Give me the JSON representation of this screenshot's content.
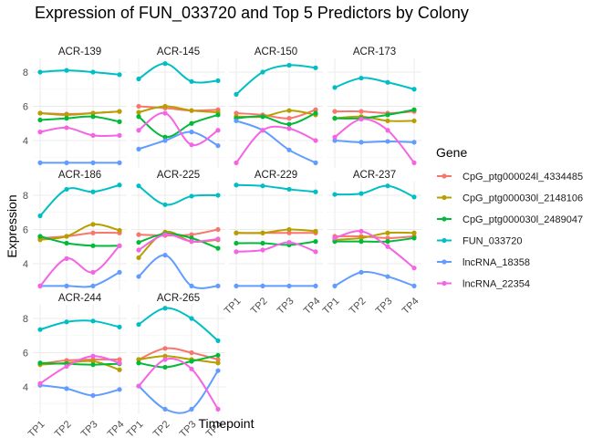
{
  "chart_data": {
    "type": "line",
    "title": "Expression of FUN_033720 and Top 5 Predictors by Colony",
    "xlabel": "Timepoint",
    "ylabel": "Expression",
    "x": [
      "TP1",
      "TP2",
      "TP3",
      "TP4"
    ],
    "yticks": [
      4,
      6,
      8
    ],
    "ylim": [
      2.4,
      8.8
    ],
    "grid": true,
    "facet_layout": "4 columns",
    "legend": {
      "title": "Gene",
      "position": "right",
      "entries": [
        "CpG_ptg000024l_4334485",
        "CpG_ptg000030l_2148106",
        "CpG_ptg000030l_2489047",
        "FUN_033720",
        "lncRNA_18358",
        "lncRNA_22354"
      ]
    },
    "colors": {
      "CpG_ptg000024l_4334485": "#F8766D",
      "CpG_ptg000030l_2148106": "#B79F00",
      "CpG_ptg000030l_2489047": "#00BA38",
      "FUN_033720": "#00BFC4",
      "lncRNA_18358": "#619CFF",
      "lncRNA_22354": "#F564E3"
    },
    "panels": [
      {
        "colony": "ACR-139",
        "series": [
          {
            "name": "CpG_ptg000024l_4334485",
            "values": [
              5.6,
              5.55,
              5.6,
              5.7
            ]
          },
          {
            "name": "CpG_ptg000030l_2148106",
            "values": [
              5.6,
              5.5,
              5.6,
              5.7
            ]
          },
          {
            "name": "CpG_ptg000030l_2489047",
            "values": [
              5.2,
              5.3,
              5.4,
              5.1
            ]
          },
          {
            "name": "FUN_033720",
            "values": [
              8.0,
              8.1,
              8.0,
              7.85
            ]
          },
          {
            "name": "lncRNA_18358",
            "values": [
              2.7,
              2.7,
              2.7,
              2.7
            ]
          },
          {
            "name": "lncRNA_22354",
            "values": [
              4.5,
              4.75,
              4.3,
              4.3
            ]
          }
        ]
      },
      {
        "colony": "ACR-145",
        "series": [
          {
            "name": "CpG_ptg000024l_4334485",
            "values": [
              6.0,
              5.9,
              5.75,
              5.8
            ]
          },
          {
            "name": "CpG_ptg000030l_2148106",
            "values": [
              5.65,
              6.0,
              5.75,
              5.65
            ]
          },
          {
            "name": "CpG_ptg000030l_2489047",
            "values": [
              5.4,
              4.2,
              5.0,
              5.5
            ]
          },
          {
            "name": "FUN_033720",
            "values": [
              7.6,
              8.5,
              7.45,
              7.5
            ]
          },
          {
            "name": "lncRNA_18358",
            "values": [
              3.5,
              4.0,
              4.5,
              3.7
            ]
          },
          {
            "name": "lncRNA_22354",
            "values": [
              4.6,
              5.6,
              3.75,
              4.6
            ]
          }
        ]
      },
      {
        "colony": "ACR-150",
        "series": [
          {
            "name": "CpG_ptg000024l_4334485",
            "values": [
              5.6,
              5.5,
              5.3,
              5.8
            ]
          },
          {
            "name": "CpG_ptg000030l_2148106",
            "values": [
              5.4,
              5.4,
              5.75,
              5.5
            ]
          },
          {
            "name": "CpG_ptg000030l_2489047",
            "values": [
              5.3,
              5.4,
              4.95,
              5.6
            ]
          },
          {
            "name": "FUN_033720",
            "values": [
              6.7,
              8.0,
              8.4,
              8.25
            ]
          },
          {
            "name": "lncRNA_18358",
            "values": [
              5.15,
              4.6,
              3.45,
              2.7
            ]
          },
          {
            "name": "lncRNA_22354",
            "values": [
              2.7,
              4.6,
              4.7,
              4.0
            ]
          }
        ]
      },
      {
        "colony": "ACR-173",
        "series": [
          {
            "name": "CpG_ptg000024l_4334485",
            "values": [
              5.7,
              5.7,
              5.6,
              5.7
            ]
          },
          {
            "name": "CpG_ptg000030l_2148106",
            "values": [
              5.3,
              5.4,
              5.15,
              5.15
            ]
          },
          {
            "name": "CpG_ptg000030l_2489047",
            "values": [
              5.3,
              5.3,
              5.5,
              5.8
            ]
          },
          {
            "name": "FUN_033720",
            "values": [
              7.1,
              7.65,
              7.4,
              7.0
            ]
          },
          {
            "name": "lncRNA_18358",
            "values": [
              4.0,
              3.9,
              3.95,
              3.9
            ]
          },
          {
            "name": "lncRNA_22354",
            "values": [
              4.2,
              5.25,
              4.6,
              2.7
            ]
          }
        ]
      },
      {
        "colony": "ACR-186",
        "series": [
          {
            "name": "CpG_ptg000024l_4334485",
            "values": [
              5.5,
              5.6,
              5.8,
              5.8
            ]
          },
          {
            "name": "CpG_ptg000030l_2148106",
            "values": [
              5.4,
              5.6,
              6.3,
              5.95
            ]
          },
          {
            "name": "CpG_ptg000030l_2489047",
            "values": [
              5.6,
              5.2,
              5.05,
              5.05
            ]
          },
          {
            "name": "FUN_033720",
            "values": [
              6.8,
              8.35,
              8.2,
              8.6
            ]
          },
          {
            "name": "lncRNA_18358",
            "values": [
              2.7,
              2.7,
              2.7,
              3.5
            ]
          },
          {
            "name": "lncRNA_22354",
            "values": [
              2.7,
              4.3,
              3.5,
              5.05
            ]
          }
        ]
      },
      {
        "colony": "ACR-225",
        "series": [
          {
            "name": "CpG_ptg000024l_4334485",
            "values": [
              5.7,
              5.65,
              5.7,
              6.0
            ]
          },
          {
            "name": "CpG_ptg000030l_2148106",
            "values": [
              4.35,
              5.85,
              5.3,
              5.4
            ]
          },
          {
            "name": "CpG_ptg000030l_2489047",
            "values": [
              5.25,
              5.75,
              5.5,
              4.9
            ]
          },
          {
            "name": "FUN_033720",
            "values": [
              8.55,
              7.45,
              7.95,
              8.0
            ]
          },
          {
            "name": "lncRNA_18358",
            "values": [
              3.25,
              4.5,
              2.7,
              2.7
            ]
          },
          {
            "name": "lncRNA_22354",
            "values": [
              4.8,
              5.7,
              5.3,
              5.45
            ]
          }
        ]
      },
      {
        "colony": "ACR-229",
        "series": [
          {
            "name": "CpG_ptg000024l_4334485",
            "values": [
              5.8,
              5.8,
              5.8,
              5.8
            ]
          },
          {
            "name": "CpG_ptg000030l_2148106",
            "values": [
              5.8,
              5.8,
              6.0,
              5.9
            ]
          },
          {
            "name": "CpG_ptg000030l_2489047",
            "values": [
              5.2,
              5.2,
              5.1,
              5.3
            ]
          },
          {
            "name": "FUN_033720",
            "values": [
              8.6,
              8.55,
              8.35,
              8.2
            ]
          },
          {
            "name": "lncRNA_18358",
            "values": [
              2.7,
              2.7,
              2.7,
              2.7
            ]
          },
          {
            "name": "lncRNA_22354",
            "values": [
              4.7,
              4.8,
              5.25,
              4.7
            ]
          }
        ]
      },
      {
        "colony": "ACR-237",
        "series": [
          {
            "name": "CpG_ptg000024l_4334485",
            "values": [
              5.6,
              5.6,
              5.5,
              5.6
            ]
          },
          {
            "name": "CpG_ptg000030l_2148106",
            "values": [
              5.4,
              5.5,
              5.8,
              5.8
            ]
          },
          {
            "name": "CpG_ptg000030l_2489047",
            "values": [
              5.3,
              5.3,
              5.3,
              5.5
            ]
          },
          {
            "name": "FUN_033720",
            "values": [
              8.05,
              8.1,
              8.55,
              7.9
            ]
          },
          {
            "name": "lncRNA_18358",
            "values": [
              2.7,
              3.5,
              3.25,
              2.7
            ]
          },
          {
            "name": "lncRNA_22354",
            "values": [
              5.5,
              5.9,
              5.0,
              3.75
            ]
          }
        ]
      },
      {
        "colony": "ACR-244",
        "series": [
          {
            "name": "CpG_ptg000024l_4334485",
            "values": [
              5.35,
              5.55,
              5.6,
              5.6
            ]
          },
          {
            "name": "CpG_ptg000030l_2148106",
            "values": [
              5.3,
              5.4,
              5.5,
              5.0
            ]
          },
          {
            "name": "CpG_ptg000030l_2489047",
            "values": [
              5.4,
              5.35,
              5.3,
              5.35
            ]
          },
          {
            "name": "FUN_033720",
            "values": [
              7.35,
              7.8,
              7.85,
              7.5
            ]
          },
          {
            "name": "lncRNA_18358",
            "values": [
              4.1,
              3.9,
              3.5,
              3.85
            ]
          },
          {
            "name": "lncRNA_22354",
            "values": [
              4.2,
              5.2,
              5.8,
              5.4
            ]
          }
        ]
      },
      {
        "colony": "ACR-265",
        "series": [
          {
            "name": "CpG_ptg000024l_4334485",
            "values": [
              5.6,
              6.25,
              6.0,
              5.6
            ]
          },
          {
            "name": "CpG_ptg000030l_2148106",
            "values": [
              5.6,
              5.8,
              5.6,
              5.4
            ]
          },
          {
            "name": "CpG_ptg000030l_2489047",
            "values": [
              5.4,
              5.15,
              5.5,
              5.85
            ]
          },
          {
            "name": "FUN_033720",
            "values": [
              7.65,
              8.6,
              8.0,
              6.7
            ]
          },
          {
            "name": "lncRNA_18358",
            "values": [
              4.05,
              2.7,
              2.7,
              4.95
            ]
          },
          {
            "name": "lncRNA_22354",
            "values": [
              4.05,
              5.6,
              5.05,
              2.7
            ]
          }
        ]
      }
    ]
  }
}
